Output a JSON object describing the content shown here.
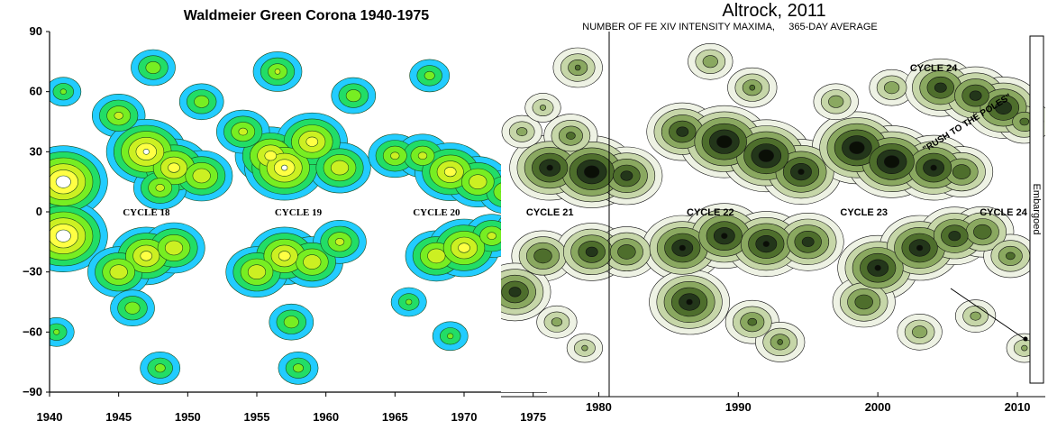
{
  "chart_data": [
    {
      "type": "heatmap",
      "title": "Waldmeier Green Corona 1940-1975",
      "xlabel": "",
      "ylabel": "",
      "xlim": [
        1940,
        1976
      ],
      "ylim": [
        -90,
        90
      ],
      "x_ticks": [
        "1940",
        "1945",
        "1950",
        "1955",
        "1960",
        "1965",
        "1970",
        "1975"
      ],
      "y_ticks": [
        "90",
        "60",
        "30",
        "0",
        "−30",
        "−60",
        "−90"
      ],
      "y_tick_values": [
        90,
        60,
        30,
        0,
        -30,
        -60,
        -90
      ],
      "x_tick_values": [
        1940,
        1945,
        1950,
        1955,
        1960,
        1965,
        1970,
        1975
      ],
      "annotations": [
        {
          "text": "CYCLE 18",
          "x": 1947,
          "y": 0
        },
        {
          "text": "CYCLE 19",
          "x": 1958,
          "y": 0
        },
        {
          "text": "CYCLE 20",
          "x": 1968,
          "y": 0
        }
      ],
      "colors": [
        "#22ccff",
        "#22dd66",
        "#77ee22",
        "#ccf022",
        "#ffff44",
        "#ffffff"
      ],
      "blobs": [
        {
          "x": 1941,
          "y": 15,
          "v": 1.0
        },
        {
          "x": 1941,
          "y": -12,
          "v": 1.0
        },
        {
          "x": 1941,
          "y": 60,
          "v": 0.4
        },
        {
          "x": 1940.5,
          "y": -60,
          "v": 0.4
        },
        {
          "x": 1945,
          "y": 48,
          "v": 0.6
        },
        {
          "x": 1947,
          "y": 30,
          "v": 0.9
        },
        {
          "x": 1949,
          "y": 22,
          "v": 0.8
        },
        {
          "x": 1951,
          "y": 18,
          "v": 0.7
        },
        {
          "x": 1948,
          "y": 12,
          "v": 0.6
        },
        {
          "x": 1947,
          "y": -22,
          "v": 0.8
        },
        {
          "x": 1945,
          "y": -30,
          "v": 0.7
        },
        {
          "x": 1949,
          "y": -18,
          "v": 0.7
        },
        {
          "x": 1946,
          "y": -48,
          "v": 0.5
        },
        {
          "x": 1948,
          "y": -78,
          "v": 0.45
        },
        {
          "x": 1947.5,
          "y": 72,
          "v": 0.5
        },
        {
          "x": 1951,
          "y": 55,
          "v": 0.5
        },
        {
          "x": 1956,
          "y": 28,
          "v": 0.8
        },
        {
          "x": 1957,
          "y": 22,
          "v": 0.9
        },
        {
          "x": 1959,
          "y": 35,
          "v": 0.8
        },
        {
          "x": 1961,
          "y": 22,
          "v": 0.7
        },
        {
          "x": 1954,
          "y": 40,
          "v": 0.6
        },
        {
          "x": 1956.5,
          "y": 70,
          "v": 0.55
        },
        {
          "x": 1957,
          "y": -22,
          "v": 0.8
        },
        {
          "x": 1955,
          "y": -30,
          "v": 0.7
        },
        {
          "x": 1959,
          "y": -25,
          "v": 0.7
        },
        {
          "x": 1961,
          "y": -15,
          "v": 0.6
        },
        {
          "x": 1957.5,
          "y": -55,
          "v": 0.5
        },
        {
          "x": 1958,
          "y": -78,
          "v": 0.45
        },
        {
          "x": 1962,
          "y": 58,
          "v": 0.5
        },
        {
          "x": 1965,
          "y": 28,
          "v": 0.6
        },
        {
          "x": 1967,
          "y": 28,
          "v": 0.6
        },
        {
          "x": 1969,
          "y": 20,
          "v": 0.8
        },
        {
          "x": 1971,
          "y": 15,
          "v": 0.7
        },
        {
          "x": 1973,
          "y": 10,
          "v": 0.6
        },
        {
          "x": 1975,
          "y": 8,
          "v": 0.55
        },
        {
          "x": 1967.5,
          "y": 68,
          "v": 0.45
        },
        {
          "x": 1968,
          "y": -22,
          "v": 0.7
        },
        {
          "x": 1970,
          "y": -18,
          "v": 0.8
        },
        {
          "x": 1972,
          "y": -12,
          "v": 0.6
        },
        {
          "x": 1974,
          "y": -8,
          "v": 0.5
        },
        {
          "x": 1966,
          "y": -45,
          "v": 0.4
        },
        {
          "x": 1969,
          "y": -62,
          "v": 0.4
        }
      ]
    },
    {
      "type": "heatmap",
      "title": "Altrock, 2011",
      "subtitle": "NUMBER OF FE XIV INTENSITY MAXIMA,     365-DAY AVERAGE",
      "xlabel": "",
      "ylabel": "",
      "xlim": [
        1973,
        2012
      ],
      "ylim": [
        -90,
        90
      ],
      "x_ticks": [
        "1980",
        "1990",
        "2000",
        "2010"
      ],
      "x_tick_values": [
        1980,
        1990,
        2000,
        2010
      ],
      "embargo_label": "Embargoed",
      "annotations": [
        {
          "text": "CYCLE 21",
          "x": 1976.5,
          "y": 0
        },
        {
          "text": "CYCLE 22",
          "x": 1988,
          "y": 0
        },
        {
          "text": "CYCLE 23",
          "x": 1999,
          "y": 0
        },
        {
          "text": "CYCLE 24",
          "x": 2009,
          "y": 0
        },
        {
          "text": "CYCLE 24",
          "x": 2004,
          "y": 72
        },
        {
          "text": "\"RUSH TO THE POLES\"",
          "x": 2006.5,
          "y": 45
        }
      ],
      "colors": [
        "#eef2e4",
        "#c6d6a8",
        "#8aa860",
        "#4e6e2c",
        "#23361a",
        "#0a0f06"
      ],
      "blobs": [
        {
          "x": 1976.5,
          "y": 22,
          "v": 0.9
        },
        {
          "x": 1979.5,
          "y": 20,
          "v": 1.0
        },
        {
          "x": 1982,
          "y": 18,
          "v": 0.8
        },
        {
          "x": 1978,
          "y": 38,
          "v": 0.6
        },
        {
          "x": 1978.5,
          "y": 72,
          "v": 0.55
        },
        {
          "x": 1974.5,
          "y": 40,
          "v": 0.45
        },
        {
          "x": 1976,
          "y": 52,
          "v": 0.4
        },
        {
          "x": 1976,
          "y": -22,
          "v": 0.7
        },
        {
          "x": 1979.5,
          "y": -20,
          "v": 0.8
        },
        {
          "x": 1982,
          "y": -20,
          "v": 0.7
        },
        {
          "x": 1974,
          "y": -40,
          "v": 0.8
        },
        {
          "x": 1977,
          "y": -55,
          "v": 0.45
        },
        {
          "x": 1979,
          "y": -68,
          "v": 0.4
        },
        {
          "x": 1986,
          "y": 40,
          "v": 0.8
        },
        {
          "x": 1989,
          "y": 35,
          "v": 1.0
        },
        {
          "x": 1992,
          "y": 28,
          "v": 1.0
        },
        {
          "x": 1994.5,
          "y": 20,
          "v": 0.9
        },
        {
          "x": 1991,
          "y": 62,
          "v": 0.55
        },
        {
          "x": 1988,
          "y": 75,
          "v": 0.5
        },
        {
          "x": 1986,
          "y": -18,
          "v": 0.9
        },
        {
          "x": 1989,
          "y": -12,
          "v": 0.9
        },
        {
          "x": 1992,
          "y": -16,
          "v": 0.9
        },
        {
          "x": 1995,
          "y": -15,
          "v": 0.8
        },
        {
          "x": 1986.5,
          "y": -45,
          "v": 0.9
        },
        {
          "x": 1991,
          "y": -55,
          "v": 0.6
        },
        {
          "x": 1993,
          "y": -65,
          "v": 0.55
        },
        {
          "x": 1998.5,
          "y": 32,
          "v": 1.0
        },
        {
          "x": 2001,
          "y": 25,
          "v": 1.0
        },
        {
          "x": 2004,
          "y": 22,
          "v": 0.9
        },
        {
          "x": 2006,
          "y": 20,
          "v": 0.7
        },
        {
          "x": 2001,
          "y": 62,
          "v": 0.5
        },
        {
          "x": 1997,
          "y": 55,
          "v": 0.5
        },
        {
          "x": 2000,
          "y": -28,
          "v": 0.9
        },
        {
          "x": 2003,
          "y": -18,
          "v": 0.9
        },
        {
          "x": 2005.5,
          "y": -12,
          "v": 0.8
        },
        {
          "x": 2007.5,
          "y": -10,
          "v": 0.7
        },
        {
          "x": 1999,
          "y": -45,
          "v": 0.7
        },
        {
          "x": 2003,
          "y": -60,
          "v": 0.5
        },
        {
          "x": 2004.5,
          "y": 62,
          "v": 0.8
        },
        {
          "x": 2007,
          "y": 58,
          "v": 0.8
        },
        {
          "x": 2009,
          "y": 52,
          "v": 0.85
        },
        {
          "x": 2010.5,
          "y": 45,
          "v": 0.6
        },
        {
          "x": 2009.5,
          "y": -22,
          "v": 0.6
        },
        {
          "x": 2007,
          "y": -52,
          "v": 0.45
        },
        {
          "x": 2010.5,
          "y": -68,
          "v": 0.4
        }
      ]
    }
  ]
}
